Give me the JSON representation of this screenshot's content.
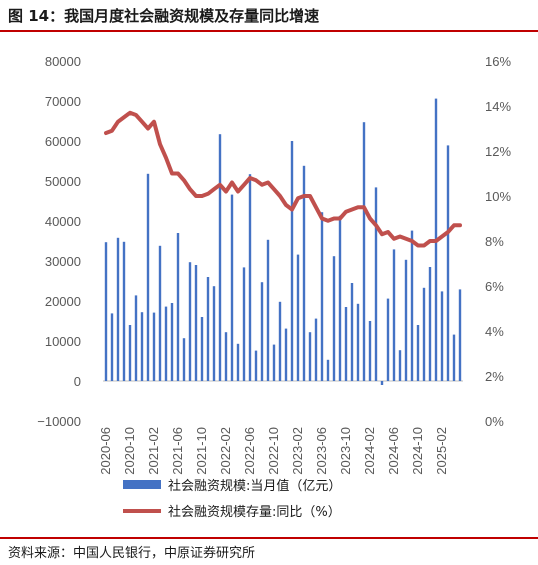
{
  "figure": {
    "title": "图 14：我国月度社会融资规模及存量同比增速",
    "source": "资料来源：中国人民银行，中原证券研究所"
  },
  "colors": {
    "bars": "#4472c4",
    "line": "#c0504d",
    "rule": "#c00000",
    "tick": "#595959"
  },
  "chart_data": {
    "type": "bar",
    "x_tick_labels": [
      "2020-06",
      "2020-10",
      "2021-02",
      "2021-06",
      "2021-10",
      "2022-02",
      "2022-06",
      "2022-10",
      "2023-02",
      "2023-06",
      "2023-10",
      "2024-02",
      "2024-06",
      "2024-10",
      "2025-02"
    ],
    "categories": [
      "2020-06",
      "2020-07",
      "2020-08",
      "2020-09",
      "2020-10",
      "2020-11",
      "2020-12",
      "2021-01",
      "2021-02",
      "2021-03",
      "2021-04",
      "2021-05",
      "2021-06",
      "2021-07",
      "2021-08",
      "2021-09",
      "2021-10",
      "2021-11",
      "2021-12",
      "2022-01",
      "2022-02",
      "2022-03",
      "2022-04",
      "2022-05",
      "2022-06",
      "2022-07",
      "2022-08",
      "2022-09",
      "2022-10",
      "2022-11",
      "2022-12",
      "2023-01",
      "2023-02",
      "2023-03",
      "2023-04",
      "2023-05",
      "2023-06",
      "2023-07",
      "2023-08",
      "2023-09",
      "2023-10",
      "2023-11",
      "2023-12",
      "2024-01",
      "2024-02",
      "2024-03",
      "2024-04",
      "2024-05",
      "2024-06",
      "2024-07",
      "2024-08",
      "2024-09",
      "2024-10",
      "2024-11",
      "2024-12",
      "2025-01",
      "2025-02",
      "2025-03",
      "2025-04",
      "2025-05"
    ],
    "series": [
      {
        "name": "社会融资规模:当月值（亿元）",
        "axis": "left",
        "type": "bar",
        "values": [
          34700,
          16900,
          35800,
          34800,
          14000,
          21400,
          17200,
          51800,
          17100,
          33800,
          18600,
          19500,
          37000,
          10700,
          29700,
          29000,
          16000,
          26000,
          23700,
          61700,
          12200,
          46600,
          9300,
          28400,
          51700,
          7600,
          24700,
          35300,
          9100,
          19800,
          13100,
          60000,
          31600,
          53800,
          12200,
          15600,
          42200,
          5300,
          31200,
          41300,
          18500,
          24500,
          19300,
          64700,
          15000,
          48400,
          -1000,
          20600,
          32900,
          7700,
          30300,
          37600,
          14000,
          23300,
          28500,
          70600,
          22400,
          58900,
          11600,
          22900
        ]
      },
      {
        "name": "社会融资规模存量:同比（%）",
        "axis": "right",
        "type": "line",
        "values": [
          12.8,
          12.9,
          13.3,
          13.5,
          13.7,
          13.6,
          13.3,
          13.0,
          13.3,
          12.3,
          11.7,
          11.0,
          11.0,
          10.7,
          10.3,
          10.0,
          10.0,
          10.1,
          10.3,
          10.5,
          10.2,
          10.6,
          10.2,
          10.5,
          10.8,
          10.7,
          10.5,
          10.6,
          10.3,
          10.0,
          9.6,
          9.4,
          9.9,
          10.0,
          10.0,
          9.5,
          9.0,
          8.9,
          9.0,
          9.0,
          9.3,
          9.4,
          9.5,
          9.5,
          9.0,
          8.7,
          8.3,
          8.4,
          8.1,
          8.2,
          8.1,
          8.0,
          7.8,
          7.8,
          8.0,
          8.0,
          8.2,
          8.4,
          8.7,
          8.7
        ]
      }
    ],
    "y_left": {
      "min": -10000,
      "max": 80000,
      "step": 10000
    },
    "y_right": {
      "min": 0,
      "max": 16,
      "step": 2,
      "unit": "%"
    },
    "grid": false,
    "legend_position": "bottom"
  }
}
